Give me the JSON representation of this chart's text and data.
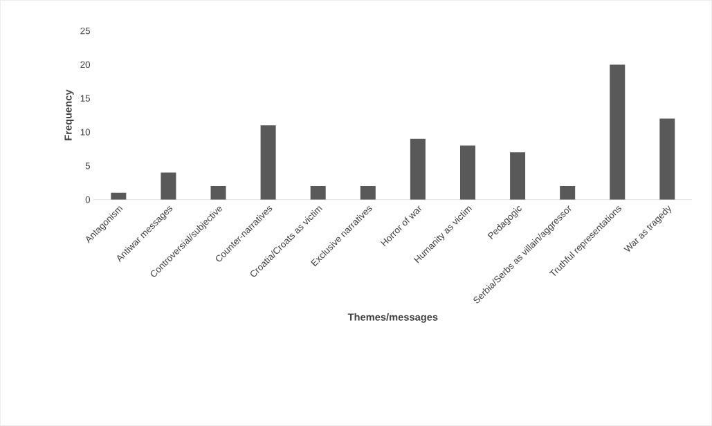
{
  "chart_data": {
    "type": "bar",
    "xlabel": "Themes/messages",
    "ylabel": "Frequency",
    "categories": [
      "Antagonism",
      "Antiwar messages",
      "Controversial/subjective",
      "Counter-narratives",
      "Croatia/Croats as victim",
      "Exclusive narratives",
      "Horror of war",
      "Humanity as victim",
      "Pedagogic",
      "Serbia/Serbs as villain/aggressor",
      "Truthful representations",
      "War as tragedy"
    ],
    "values": [
      1,
      4,
      2,
      11,
      2,
      2,
      9,
      8,
      7,
      2,
      20,
      12
    ],
    "color": "#595959",
    "ylim": [
      0,
      25
    ],
    "yticks": [
      0,
      5,
      10,
      15,
      20,
      25
    ]
  }
}
